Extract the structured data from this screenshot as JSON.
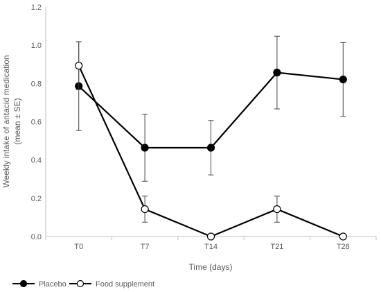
{
  "chart_data": {
    "type": "line",
    "categories": [
      "T0",
      "T7",
      "T14",
      "T21",
      "T28"
    ],
    "series": [
      {
        "name": "Placebo",
        "values": [
          0.786,
          0.464,
          0.464,
          0.857,
          0.821
        ],
        "error": [
          0.232,
          0.175,
          0.142,
          0.19,
          0.193
        ],
        "marker": "filled-circle",
        "color": "#000000"
      },
      {
        "name": "Food supplement",
        "values": [
          0.893,
          0.143,
          0.0,
          0.143,
          0.0
        ],
        "error": [
          0.125,
          0.068,
          0.0,
          0.068,
          0.0
        ],
        "marker": "open-circle",
        "color": "#000000"
      }
    ],
    "xlabel": "Time (days)",
    "ylabel_line1": "Weekly intake of antacid medication",
    "ylabel_line2": "(mean ± SE)",
    "ylim": [
      0,
      1.2
    ],
    "yticks": [
      "0.0",
      "0.2",
      "0.4",
      "0.6",
      "0.8",
      "1.0",
      "1.2"
    ],
    "grid": false,
    "legend_position": "bottom-left"
  }
}
